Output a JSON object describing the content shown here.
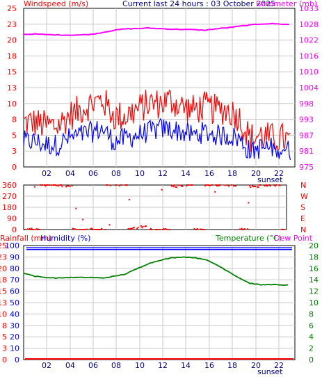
{
  "header": {
    "windspeed_title": "Windspeed (m/s)",
    "current_title": "Current last 24 hours : 03 October 2025",
    "barometer_title": "Barometer (mb)",
    "rainfall_title": "Rainfall (mm)",
    "humidity_title": "Humidity (%)",
    "temperature_title": "Temperature (°C)",
    "dewpoint_title": "Dew Point"
  },
  "colors": {
    "wind": "#ff0000",
    "gust": "#0000ff",
    "baro": "#ff00ff",
    "rain": "#ff0000",
    "humidity": "#0000ff",
    "temperature": "#008000",
    "grid": "#c8c8c8"
  },
  "x_ticks": [
    "02",
    "04",
    "06",
    "08",
    "10",
    "12",
    "14",
    "16",
    "18",
    "20",
    "22"
  ],
  "sunset_label": "sunset",
  "chart_data": [
    {
      "type": "line",
      "title": "Windspeed / Barometer",
      "x_range": [
        0,
        24
      ],
      "ylabel_left": "Windspeed (m/s)",
      "ylim_left": [
        0,
        25
      ],
      "yticks_left": [
        "25",
        "23",
        "20",
        "18",
        "15",
        "13",
        "10",
        "8",
        "5",
        "3",
        "0"
      ],
      "ylabel_right": "Barometer (mb)",
      "ylim_right": [
        975,
        1033
      ],
      "yticks_right": [
        "1033",
        "1028",
        "1022",
        "1016",
        "1010",
        "1004",
        "998",
        "993",
        "987",
        "981",
        "975"
      ],
      "series": [
        {
          "name": "Barometer",
          "axis": "right",
          "x": [
            0,
            1,
            2,
            3,
            4,
            5,
            6,
            7,
            8,
            9,
            10,
            11,
            12,
            13,
            14,
            15,
            16,
            17,
            18,
            19,
            20,
            21,
            22,
            23,
            23.5
          ],
          "values": [
            1023.5,
            1023.6,
            1023.4,
            1023.3,
            1023.2,
            1023.3,
            1023.5,
            1024.2,
            1025.0,
            1025.5,
            1025.6,
            1025.8,
            1025.6,
            1025.4,
            1025.3,
            1025.2,
            1025.0,
            1025.5,
            1025.9,
            1026.4,
            1026.9,
            1027.3,
            1027.4,
            1027.2,
            1027.1
          ]
        }
      ],
      "wind_average_approx": {
        "x": [
          0,
          1,
          2,
          3,
          4,
          5,
          6,
          7,
          8,
          9,
          10,
          11,
          12,
          13,
          14,
          15,
          16,
          17,
          18,
          19,
          20,
          21,
          22,
          23,
          23.5
        ],
        "values": [
          4,
          4,
          3.5,
          3.5,
          4.5,
          5,
          5.5,
          6,
          4,
          4.5,
          5,
          5.5,
          6,
          6,
          5.5,
          5,
          5.5,
          5,
          5,
          4.5,
          2.5,
          3,
          3,
          3,
          2.5
        ]
      },
      "gust_approx": {
        "x": [
          0,
          1,
          2,
          3,
          4,
          5,
          6,
          7,
          8,
          9,
          10,
          11,
          12,
          13,
          14,
          15,
          16,
          17,
          18,
          19,
          20,
          21,
          22,
          23,
          23.5
        ],
        "values": [
          7,
          7,
          6.5,
          6.5,
          8,
          9,
          10,
          10.5,
          8,
          8,
          9,
          10,
          10,
          10.5,
          9.5,
          9,
          9.5,
          9,
          9,
          8,
          4.5,
          5,
          4.5,
          4.5,
          4
        ]
      }
    },
    {
      "type": "scatter",
      "title": "Wind direction",
      "ylim": [
        0,
        360
      ],
      "yticks_left": [
        "360",
        "270",
        "180",
        "90",
        "0"
      ],
      "yticks_right": [
        "N",
        "W",
        "S",
        "E",
        "N"
      ],
      "direction_pattern_approx": [
        0,
        0,
        360,
        360,
        350,
        0,
        0,
        0,
        360,
        360,
        10,
        20,
        0,
        0,
        350,
        360,
        0,
        360,
        360,
        360,
        0,
        350,
        360,
        360,
        0
      ]
    },
    {
      "type": "line",
      "title": "Rainfall / Humidity / Temperature",
      "ylabel_left": "Rainfall (mm) / Humidity (%)",
      "yticks_left_rain": [
        "25",
        "23",
        "20",
        "18",
        "15",
        "13",
        "10",
        "8",
        "5",
        "3",
        "0"
      ],
      "yticks_left_hum": [
        "100",
        "90",
        "80",
        "70",
        "60",
        "50",
        "40",
        "30",
        "20",
        "10",
        "0"
      ],
      "ylim_right": [
        0,
        20
      ],
      "yticks_right": [
        "20",
        "18",
        "16",
        "14",
        "12",
        "10",
        "8",
        "6",
        "4",
        "2",
        "0"
      ],
      "series": [
        {
          "name": "Temperature",
          "axis": "right",
          "x": [
            0,
            1,
            2,
            3,
            4,
            5,
            6,
            7,
            8,
            9,
            10,
            11,
            12,
            13,
            14,
            15,
            16,
            17,
            18,
            19,
            20,
            21,
            22,
            23,
            23.5
          ],
          "values": [
            15.2,
            14.6,
            14.4,
            14.3,
            14.4,
            14.4,
            14.4,
            14.3,
            14.6,
            15.0,
            15.9,
            16.8,
            17.4,
            17.8,
            18.0,
            17.9,
            17.6,
            16.7,
            15.6,
            14.4,
            13.4,
            13.1,
            13.2,
            13.0,
            13.2
          ]
        },
        {
          "name": "Humidity",
          "axis": "left_hum",
          "x": [
            0,
            24
          ],
          "values": [
            98,
            98
          ]
        },
        {
          "name": "Rainfall",
          "axis": "left_rain",
          "x": [
            0,
            24
          ],
          "values": [
            0,
            0
          ]
        }
      ]
    }
  ]
}
